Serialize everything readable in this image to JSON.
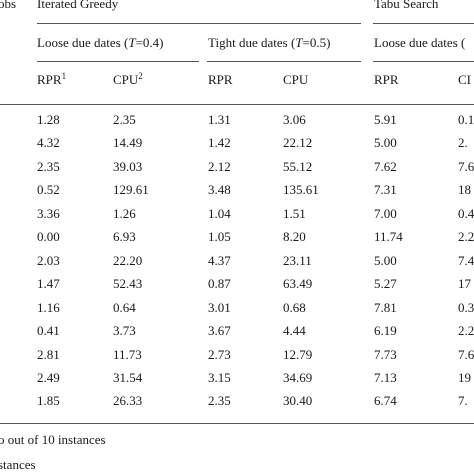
{
  "header": {
    "jobs_label": "obs",
    "group_ig": "Iterated Greedy",
    "group_ts": "Tabu Search",
    "ig_loose": {
      "prefix": "Loose due dates (",
      "var": "T",
      "suffix": "=0.4)"
    },
    "ig_tight": {
      "prefix": "Tight due dates (",
      "var": "T",
      "suffix": "=0.5)"
    },
    "ts_loose": {
      "prefix": "Loose due dates (",
      "var": "",
      "suffix": ""
    },
    "col_rpr1": "RPR",
    "col_rpr1_sup": "1",
    "col_cpu1": "CPU",
    "col_cpu1_sup": "2",
    "col_rpr2": "RPR",
    "col_cpu2": "CPU",
    "col_rpr3": "RPR",
    "col_cpu3": "CI"
  },
  "rows": [
    [
      "1.28",
      "2.35",
      "1.31",
      "3.06",
      "5.91",
      "0.1"
    ],
    [
      "4.32",
      "14.49",
      "1.42",
      "22.12",
      "5.00",
      "2."
    ],
    [
      "2.35",
      "39.03",
      "2.12",
      "55.12",
      "7.62",
      "7.6"
    ],
    [
      "0.52",
      "129.61",
      "3.48",
      "135.61",
      "7.31",
      "18"
    ],
    [
      "3.36",
      "1.26",
      "1.04",
      "1.51",
      "7.00",
      "0.4"
    ],
    [
      "0.00",
      "6.93",
      "1.05",
      "8.20",
      "11.74",
      "2.2"
    ],
    [
      "2.03",
      "22.20",
      "4.37",
      "23.11",
      "5.00",
      "7.4"
    ],
    [
      "1.47",
      "52.43",
      "0.87",
      "63.49",
      "5.27",
      "17"
    ],
    [
      "1.16",
      "0.64",
      "3.01",
      "0.68",
      "7.81",
      "0.3"
    ],
    [
      "0.41",
      "3.73",
      "3.67",
      "4.44",
      "6.19",
      "2.2"
    ],
    [
      "2.81",
      "11.73",
      "2.73",
      "12.79",
      "7.73",
      "7.6"
    ],
    [
      "2.49",
      "31.54",
      "3.15",
      "34.69",
      "7.13",
      "19"
    ],
    [
      "1.85",
      "26.33",
      "2.35",
      "30.40",
      "6.74",
      "7."
    ]
  ],
  "footnotes": [
    "o out of 10 instances",
    "stances"
  ]
}
